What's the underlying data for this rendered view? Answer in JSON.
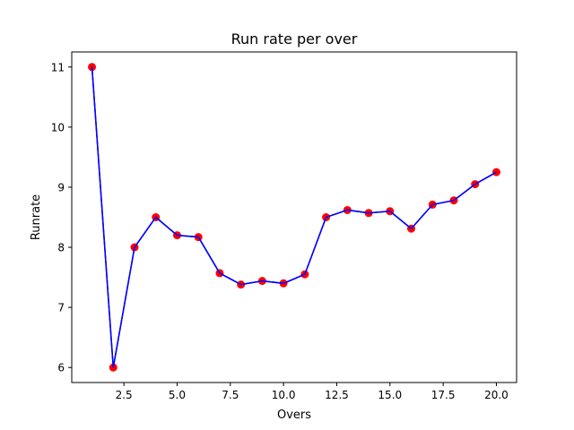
{
  "chart_data": {
    "type": "line",
    "title": "Run rate per over",
    "xlabel": "Overs",
    "ylabel": "Runrate",
    "x": [
      1,
      2,
      3,
      4,
      5,
      6,
      7,
      8,
      9,
      10,
      11,
      12,
      13,
      14,
      15,
      16,
      17,
      18,
      19,
      20
    ],
    "series": [
      {
        "values": [
          11.0,
          6.0,
          8.0,
          8.5,
          8.2,
          8.17,
          7.57,
          7.38,
          7.44,
          7.4,
          7.55,
          8.5,
          8.62,
          8.57,
          8.6,
          8.31,
          8.71,
          8.78,
          9.05,
          9.25
        ]
      }
    ],
    "xlim": [
      0.05,
      20.95
    ],
    "ylim": [
      5.75,
      11.25
    ],
    "xticks": [
      "2.5",
      "5.0",
      "7.5",
      "10.0",
      "12.5",
      "15.0",
      "17.5",
      "20.0"
    ],
    "yticks": [
      "6",
      "7",
      "8",
      "9",
      "10",
      "11"
    ],
    "grid": false,
    "line_color": "#0000ff",
    "marker_color": "#ff0000"
  }
}
